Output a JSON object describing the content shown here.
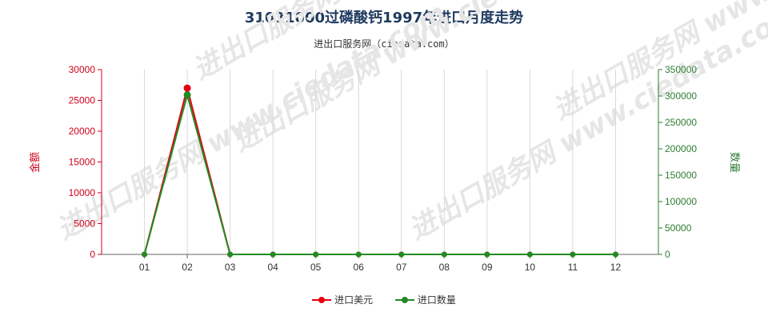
{
  "title": "31031000过磷酸钙1997年进口月度走势",
  "subtitle": "进出口服务网（ciedata.com）",
  "watermark": "进出口服务网 www.ciedata.com",
  "colors": {
    "left_axis": "#d0021b",
    "right_axis": "#2e7d32",
    "grid": "#d9d9d9",
    "axis": "#666666"
  },
  "chart_data": {
    "type": "line",
    "categories": [
      "01",
      "02",
      "03",
      "04",
      "05",
      "06",
      "07",
      "08",
      "09",
      "10",
      "11",
      "12"
    ],
    "y_left": {
      "label": "金额",
      "ylim": [
        0,
        30000
      ],
      "ticks": [
        "0",
        "5000",
        "10000",
        "15000",
        "20000",
        "25000",
        "30000"
      ]
    },
    "y_right": {
      "label": "数量",
      "ylim": [
        0,
        350000
      ],
      "ticks": [
        "0",
        "50000",
        "100000",
        "150000",
        "200000",
        "250000",
        "300000",
        "350000"
      ]
    },
    "grid": true,
    "legend_position": "bottom",
    "series": [
      {
        "name": "进口美元",
        "axis": "left",
        "color": "#e60012",
        "values": [
          0,
          27000,
          0,
          0,
          0,
          0,
          0,
          0,
          0,
          0,
          0,
          0
        ]
      },
      {
        "name": "进口数量",
        "axis": "right",
        "color": "#228b22",
        "values": [
          0,
          302000,
          0,
          0,
          0,
          0,
          0,
          0,
          0,
          0,
          0,
          0
        ]
      }
    ]
  }
}
